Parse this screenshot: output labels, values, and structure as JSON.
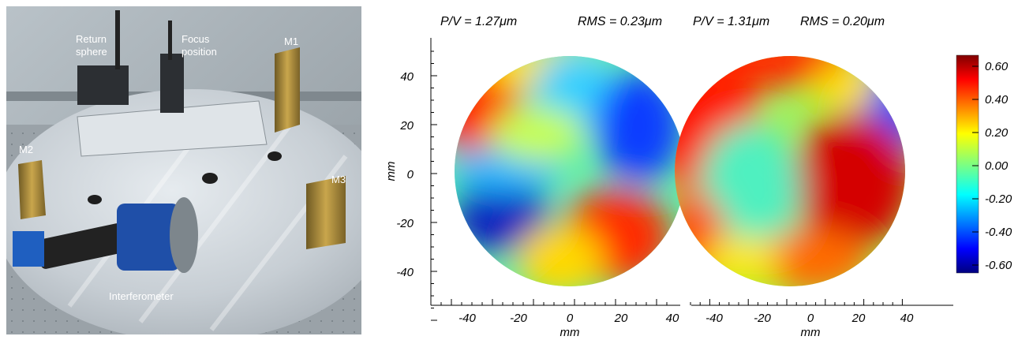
{
  "photo": {
    "labels": {
      "return_sphere_line1": "Return",
      "return_sphere_line2": "sphere",
      "focus_line1": "Focus",
      "focus_line2": "position",
      "m1": "M1",
      "m2": "M2",
      "m3": "M3",
      "interferometer": "Interferometer"
    }
  },
  "maps": {
    "left": {
      "pv": "P/V = 1.27μm",
      "rms": "RMS = 0.23μm",
      "x_ticks": [
        "-40",
        "-20",
        "0",
        "20",
        "40"
      ],
      "y_ticks": [
        "40",
        "20",
        "0",
        "-20",
        "-40"
      ],
      "xlabel": "mm",
      "ylabel": "mm"
    },
    "right": {
      "pv": "P/V = 1.31μm",
      "rms": "RMS = 0.20μm",
      "x_ticks": [
        "-40",
        "-20",
        "0",
        "20",
        "40"
      ]
    }
  },
  "chart_data": {
    "type": "heatmap",
    "colorbar": {
      "range": [
        -0.65,
        0.65
      ],
      "ticks": [
        "0.60",
        "0.40",
        "0.20",
        "0.00",
        "-0.20",
        "-0.40",
        "-0.60"
      ],
      "colormap": "jet"
    },
    "xlim": [
      -55,
      55
    ],
    "ylim": [
      -55,
      50
    ],
    "aperture_radius_mm": 47
  }
}
